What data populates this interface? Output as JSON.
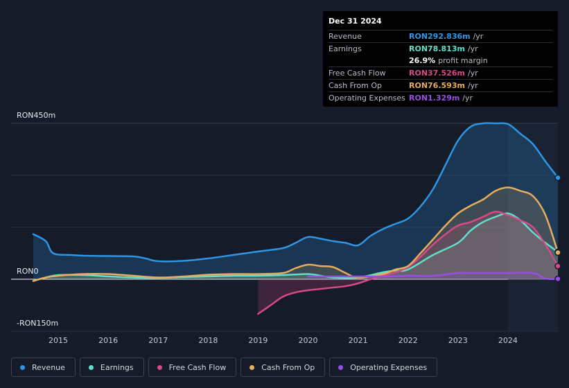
{
  "tooltip": {
    "date": "Dec 31 2024",
    "rows": [
      {
        "label": "Revenue",
        "value": "RON292.836m",
        "unit": "/yr",
        "color": "#2f96e6"
      },
      {
        "label": "Earnings",
        "value": "RON78.813m",
        "unit": "/yr",
        "color": "#5ee0cc"
      },
      {
        "label": "",
        "value": "26.9%",
        "unit": "profit margin",
        "color": "#ffffff"
      },
      {
        "label": "Free Cash Flow",
        "value": "RON37.526m",
        "unit": "/yr",
        "color": "#d64a86"
      },
      {
        "label": "Cash From Op",
        "value": "RON76.593m",
        "unit": "/yr",
        "color": "#e8ad5d"
      },
      {
        "label": "Operating Expenses",
        "value": "RON1.329m",
        "unit": "/yr",
        "color": "#9a4de6"
      }
    ]
  },
  "axis": {
    "top_label": "RON450m",
    "zero_label": "RON0",
    "bottom_label": "-RON150m"
  },
  "legend": [
    {
      "label": "Revenue",
      "color": "#2f96e6"
    },
    {
      "label": "Earnings",
      "color": "#5ee0cc"
    },
    {
      "label": "Free Cash Flow",
      "color": "#d64a86"
    },
    {
      "label": "Cash From Op",
      "color": "#e8ad5d"
    },
    {
      "label": "Operating Expenses",
      "color": "#9a4de6"
    }
  ],
  "chart_data": {
    "type": "area",
    "title": "",
    "xlabel": "",
    "ylabel": "RON",
    "ylim": [
      -150,
      450
    ],
    "xlim": [
      2014.5,
      2025.0
    ],
    "x_ticks": [
      "2015",
      "2016",
      "2017",
      "2018",
      "2019",
      "2020",
      "2021",
      "2022",
      "2023",
      "2024"
    ],
    "highlight_from": 2024.0,
    "series": [
      {
        "name": "Revenue",
        "color": "#2f96e6",
        "x": [
          2014.5,
          2014.75,
          2014.9,
          2015.25,
          2015.5,
          2016.0,
          2016.5,
          2016.75,
          2017.0,
          2017.5,
          2018.0,
          2018.5,
          2019.0,
          2019.5,
          2019.75,
          2020.0,
          2020.25,
          2020.5,
          2020.75,
          2021.0,
          2021.25,
          2021.5,
          2021.75,
          2022.0,
          2022.25,
          2022.5,
          2022.75,
          2023.0,
          2023.25,
          2023.5,
          2023.75,
          2024.0,
          2024.25,
          2024.5,
          2024.75,
          2025.0
        ],
        "y": [
          130,
          110,
          75,
          70,
          68,
          67,
          66,
          60,
          52,
          53,
          60,
          70,
          80,
          90,
          105,
          122,
          117,
          110,
          105,
          98,
          125,
          145,
          160,
          175,
          210,
          260,
          330,
          400,
          440,
          450,
          450,
          448,
          420,
          390,
          340,
          293
        ]
      },
      {
        "name": "Earnings",
        "color": "#5ee0cc",
        "x": [
          2014.5,
          2014.75,
          2015.0,
          2015.5,
          2016.0,
          2016.5,
          2017.0,
          2017.5,
          2018.0,
          2018.5,
          2019.0,
          2019.5,
          2020.0,
          2020.25,
          2020.5,
          2021.0,
          2021.5,
          2021.75,
          2022.0,
          2022.5,
          2023.0,
          2023.25,
          2023.5,
          2023.75,
          2024.0,
          2024.25,
          2024.5,
          2024.75,
          2025.0
        ],
        "y": [
          -5,
          5,
          12,
          12,
          8,
          5,
          4,
          6,
          8,
          10,
          10,
          12,
          15,
          10,
          5,
          5,
          20,
          25,
          28,
          70,
          105,
          140,
          165,
          180,
          190,
          170,
          135,
          105,
          79
        ]
      },
      {
        "name": "Free Cash Flow",
        "color": "#d64a86",
        "x": [
          2019.0,
          2019.25,
          2019.5,
          2019.75,
          2020.0,
          2020.25,
          2020.5,
          2020.75,
          2021.0,
          2021.25,
          2021.5,
          2021.75,
          2022.0,
          2022.25,
          2022.5,
          2022.75,
          2023.0,
          2023.25,
          2023.5,
          2023.75,
          2024.0,
          2024.25,
          2024.5,
          2024.75,
          2025.0
        ],
        "y": [
          -100,
          -75,
          -50,
          -38,
          -32,
          -28,
          -24,
          -20,
          -12,
          0,
          10,
          20,
          35,
          65,
          100,
          130,
          155,
          165,
          180,
          195,
          185,
          170,
          150,
          100,
          38
        ]
      },
      {
        "name": "Cash From Op",
        "color": "#e8ad5d",
        "x": [
          2014.5,
          2014.75,
          2015.0,
          2015.5,
          2016.0,
          2016.5,
          2017.0,
          2017.5,
          2018.0,
          2018.5,
          2019.0,
          2019.5,
          2019.75,
          2020.0,
          2020.25,
          2020.5,
          2020.75,
          2021.0,
          2021.5,
          2021.75,
          2022.0,
          2022.25,
          2022.5,
          2022.75,
          2023.0,
          2023.25,
          2023.5,
          2023.75,
          2024.0,
          2024.25,
          2024.5,
          2024.75,
          2025.0
        ],
        "y": [
          -5,
          5,
          10,
          15,
          15,
          10,
          5,
          8,
          13,
          15,
          15,
          18,
          32,
          42,
          38,
          35,
          18,
          5,
          15,
          28,
          38,
          75,
          115,
          155,
          190,
          212,
          230,
          255,
          265,
          255,
          240,
          185,
          77
        ]
      },
      {
        "name": "Operating Expenses",
        "color": "#9a4de6",
        "x": [
          2020.0,
          2020.5,
          2021.0,
          2021.5,
          2022.0,
          2022.5,
          2023.0,
          2023.25,
          2023.5,
          2024.0,
          2024.5,
          2024.75,
          2025.0
        ],
        "y": [
          8,
          8,
          8,
          8,
          10,
          10,
          18,
          18,
          18,
          18,
          18,
          2,
          1
        ]
      }
    ]
  }
}
